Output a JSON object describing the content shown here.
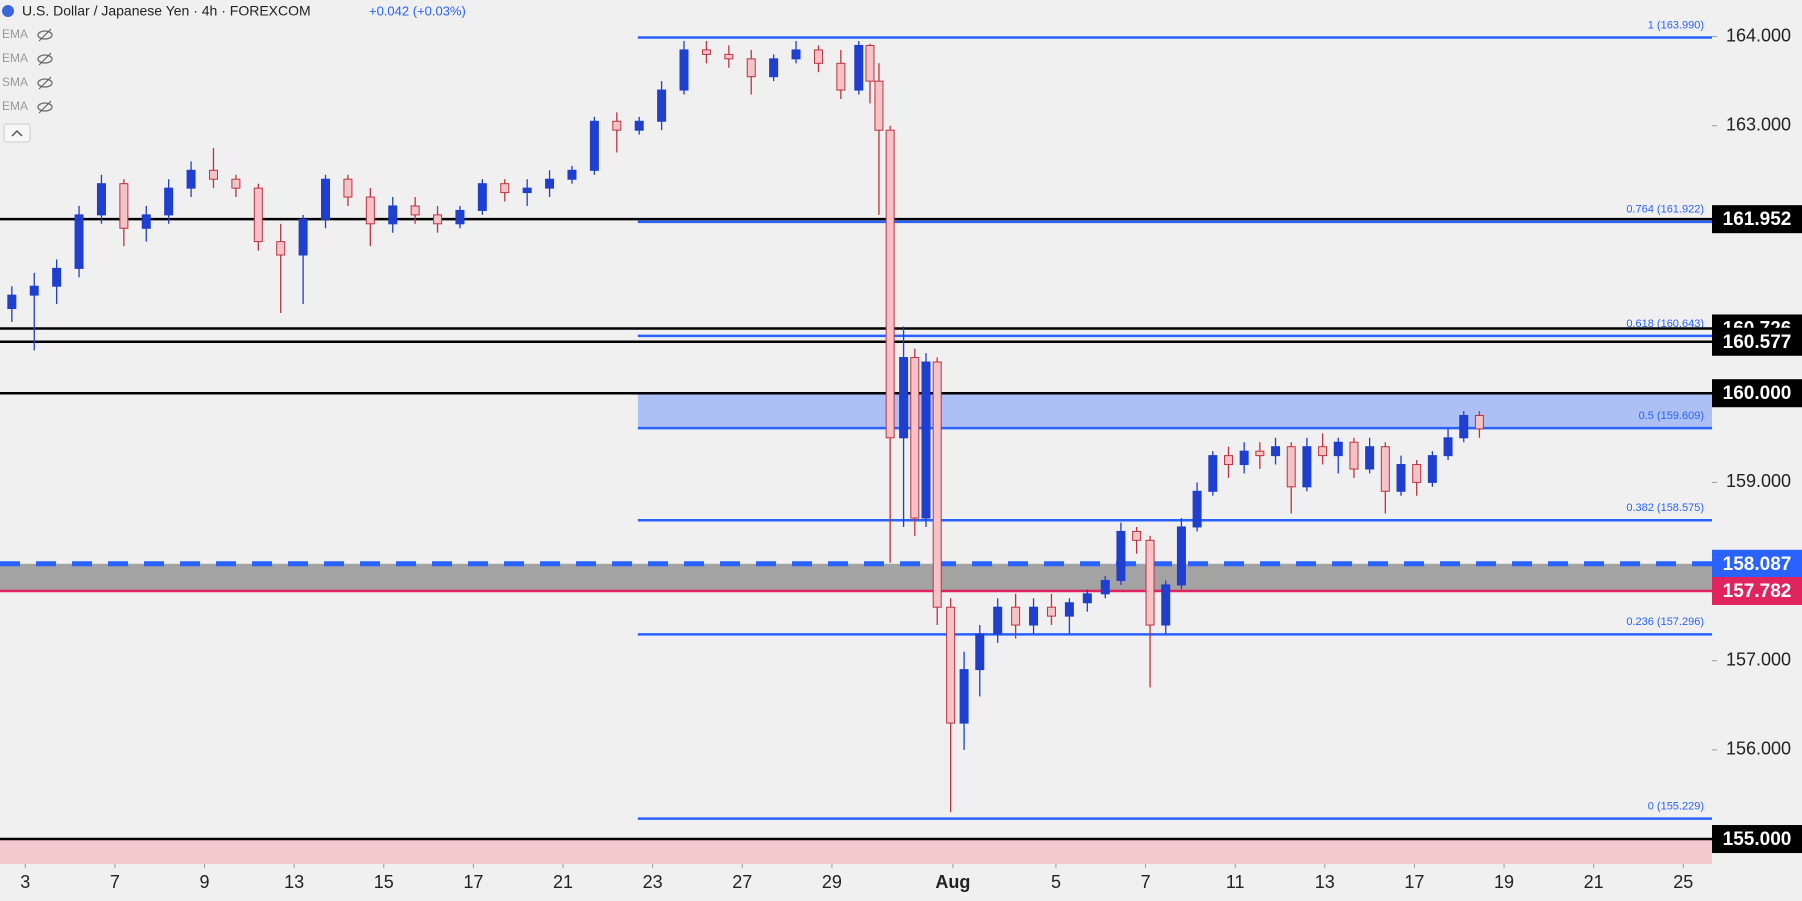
{
  "header": {
    "symbol": "U.S. Dollar / Japanese Yen · 4h · FOREXCOM",
    "change": "+0.042 (+0.03%)",
    "indicators": [
      "EMA",
      "EMA",
      "SMA",
      "EMA"
    ]
  },
  "chart_data": {
    "type": "candlestick",
    "xlim": [
      -0.564,
      37.64
    ],
    "ylim": [
      154.72,
      164.41
    ],
    "xticks": [
      {
        "value": 0,
        "label": "3"
      },
      {
        "value": 2,
        "label": "7"
      },
      {
        "value": 4,
        "label": "9"
      },
      {
        "value": 6,
        "label": "13"
      },
      {
        "value": 8,
        "label": "15"
      },
      {
        "value": 10,
        "label": "17"
      },
      {
        "value": 12,
        "label": "21"
      },
      {
        "value": 14,
        "label": "23"
      },
      {
        "value": 16,
        "label": "27"
      },
      {
        "value": 18,
        "label": "29"
      },
      {
        "value": 20.7,
        "label": "Aug"
      },
      {
        "value": 23,
        "label": "5"
      },
      {
        "value": 25,
        "label": "7"
      },
      {
        "value": 27,
        "label": "11"
      },
      {
        "value": 29,
        "label": "13"
      },
      {
        "value": 31,
        "label": "17"
      },
      {
        "value": 33,
        "label": "19"
      },
      {
        "value": 35,
        "label": "21"
      },
      {
        "value": 37,
        "label": "25"
      }
    ],
    "yticks": [
      {
        "value": 164,
        "label": "164.000"
      },
      {
        "value": 163,
        "label": "163.000"
      },
      {
        "value": 159,
        "label": "159.000"
      },
      {
        "value": 157,
        "label": "157.000"
      },
      {
        "value": 156,
        "label": "156.000"
      }
    ],
    "up_color": "#1f3fcf",
    "down_color": "#c0323f",
    "candles": [
      {
        "x": -0.3,
        "o": 160.95,
        "h": 161.2,
        "l": 160.8,
        "c": 161.1
      },
      {
        "x": 0.2,
        "o": 161.1,
        "h": 161.35,
        "l": 160.48,
        "c": 161.2
      },
      {
        "x": 0.7,
        "o": 161.2,
        "h": 161.5,
        "l": 161.0,
        "c": 161.4
      },
      {
        "x": 1.2,
        "o": 161.4,
        "h": 162.1,
        "l": 161.3,
        "c": 162.0
      },
      {
        "x": 1.7,
        "o": 162.0,
        "h": 162.45,
        "l": 161.9,
        "c": 162.35
      },
      {
        "x": 2.2,
        "o": 162.35,
        "h": 162.4,
        "l": 161.65,
        "c": 161.85
      },
      {
        "x": 2.7,
        "o": 161.85,
        "h": 162.1,
        "l": 161.7,
        "c": 162.0
      },
      {
        "x": 3.2,
        "o": 162.0,
        "h": 162.4,
        "l": 161.9,
        "c": 162.3
      },
      {
        "x": 3.7,
        "o": 162.3,
        "h": 162.6,
        "l": 162.2,
        "c": 162.5
      },
      {
        "x": 4.2,
        "o": 162.5,
        "h": 162.75,
        "l": 162.3,
        "c": 162.4
      },
      {
        "x": 4.7,
        "o": 162.4,
        "h": 162.45,
        "l": 162.2,
        "c": 162.3
      },
      {
        "x": 5.2,
        "o": 162.3,
        "h": 162.35,
        "l": 161.6,
        "c": 161.7
      },
      {
        "x": 5.7,
        "o": 161.7,
        "h": 161.9,
        "l": 160.9,
        "c": 161.55
      },
      {
        "x": 6.2,
        "o": 161.55,
        "h": 162.0,
        "l": 161.0,
        "c": 161.95
      },
      {
        "x": 6.7,
        "o": 161.95,
        "h": 162.45,
        "l": 161.85,
        "c": 162.4
      },
      {
        "x": 7.2,
        "o": 162.4,
        "h": 162.45,
        "l": 162.1,
        "c": 162.2
      },
      {
        "x": 7.7,
        "o": 162.2,
        "h": 162.3,
        "l": 161.65,
        "c": 161.9
      },
      {
        "x": 8.2,
        "o": 161.9,
        "h": 162.2,
        "l": 161.8,
        "c": 162.1
      },
      {
        "x": 8.7,
        "o": 162.1,
        "h": 162.2,
        "l": 161.9,
        "c": 162.0
      },
      {
        "x": 9.2,
        "o": 162.0,
        "h": 162.1,
        "l": 161.8,
        "c": 161.9
      },
      {
        "x": 9.7,
        "o": 161.9,
        "h": 162.1,
        "l": 161.85,
        "c": 162.05
      },
      {
        "x": 10.2,
        "o": 162.05,
        "h": 162.4,
        "l": 162.0,
        "c": 162.35
      },
      {
        "x": 10.7,
        "o": 162.35,
        "h": 162.4,
        "l": 162.15,
        "c": 162.25
      },
      {
        "x": 11.2,
        "o": 162.25,
        "h": 162.4,
        "l": 162.1,
        "c": 162.3
      },
      {
        "x": 11.7,
        "o": 162.3,
        "h": 162.5,
        "l": 162.2,
        "c": 162.4
      },
      {
        "x": 12.2,
        "o": 162.4,
        "h": 162.55,
        "l": 162.35,
        "c": 162.5
      },
      {
        "x": 12.7,
        "o": 162.5,
        "h": 163.1,
        "l": 162.45,
        "c": 163.05
      },
      {
        "x": 13.2,
        "o": 163.05,
        "h": 163.15,
        "l": 162.7,
        "c": 162.95
      },
      {
        "x": 13.7,
        "o": 162.95,
        "h": 163.1,
        "l": 162.9,
        "c": 163.05
      },
      {
        "x": 14.2,
        "o": 163.05,
        "h": 163.5,
        "l": 162.95,
        "c": 163.4
      },
      {
        "x": 14.7,
        "o": 163.4,
        "h": 163.95,
        "l": 163.35,
        "c": 163.85
      },
      {
        "x": 15.2,
        "o": 163.85,
        "h": 163.95,
        "l": 163.7,
        "c": 163.8
      },
      {
        "x": 15.7,
        "o": 163.8,
        "h": 163.9,
        "l": 163.65,
        "c": 163.75
      },
      {
        "x": 16.2,
        "o": 163.75,
        "h": 163.85,
        "l": 163.35,
        "c": 163.55
      },
      {
        "x": 16.7,
        "o": 163.55,
        "h": 163.8,
        "l": 163.5,
        "c": 163.75
      },
      {
        "x": 17.2,
        "o": 163.75,
        "h": 163.95,
        "l": 163.7,
        "c": 163.85
      },
      {
        "x": 17.7,
        "o": 163.85,
        "h": 163.9,
        "l": 163.6,
        "c": 163.7
      },
      {
        "x": 18.2,
        "o": 163.7,
        "h": 163.85,
        "l": 163.3,
        "c": 163.4
      },
      {
        "x": 18.6,
        "o": 163.4,
        "h": 163.95,
        "l": 163.35,
        "c": 163.9
      },
      {
        "x": 18.85,
        "o": 163.9,
        "h": 163.92,
        "l": 163.25,
        "c": 163.5
      },
      {
        "x": 19.05,
        "o": 163.5,
        "h": 163.7,
        "l": 162.0,
        "c": 162.95
      },
      {
        "x": 19.3,
        "o": 162.95,
        "h": 163.0,
        "l": 158.1,
        "c": 159.5
      },
      {
        "x": 19.6,
        "o": 159.5,
        "h": 160.75,
        "l": 158.5,
        "c": 160.4
      },
      {
        "x": 19.85,
        "o": 160.4,
        "h": 160.5,
        "l": 158.4,
        "c": 158.6
      },
      {
        "x": 20.1,
        "o": 158.6,
        "h": 160.45,
        "l": 158.5,
        "c": 160.35
      },
      {
        "x": 20.35,
        "o": 160.35,
        "h": 160.4,
        "l": 157.4,
        "c": 157.6
      },
      {
        "x": 20.65,
        "o": 157.6,
        "h": 157.7,
        "l": 155.3,
        "c": 156.3
      },
      {
        "x": 20.95,
        "o": 156.3,
        "h": 157.1,
        "l": 156.0,
        "c": 156.9
      },
      {
        "x": 21.3,
        "o": 156.9,
        "h": 157.4,
        "l": 156.6,
        "c": 157.3
      },
      {
        "x": 21.7,
        "o": 157.3,
        "h": 157.7,
        "l": 157.2,
        "c": 157.6
      },
      {
        "x": 22.1,
        "o": 157.6,
        "h": 157.75,
        "l": 157.25,
        "c": 157.4
      },
      {
        "x": 22.5,
        "o": 157.4,
        "h": 157.7,
        "l": 157.3,
        "c": 157.6
      },
      {
        "x": 22.9,
        "o": 157.6,
        "h": 157.75,
        "l": 157.4,
        "c": 157.5
      },
      {
        "x": 23.3,
        "o": 157.5,
        "h": 157.7,
        "l": 157.3,
        "c": 157.65
      },
      {
        "x": 23.7,
        "o": 157.65,
        "h": 157.8,
        "l": 157.55,
        "c": 157.75
      },
      {
        "x": 24.1,
        "o": 157.75,
        "h": 157.95,
        "l": 157.7,
        "c": 157.9
      },
      {
        "x": 24.45,
        "o": 157.9,
        "h": 158.55,
        "l": 157.85,
        "c": 158.45
      },
      {
        "x": 24.8,
        "o": 158.45,
        "h": 158.5,
        "l": 158.2,
        "c": 158.35
      },
      {
        "x": 25.1,
        "o": 158.35,
        "h": 158.4,
        "l": 156.7,
        "c": 157.4
      },
      {
        "x": 25.45,
        "o": 157.4,
        "h": 157.9,
        "l": 157.3,
        "c": 157.85
      },
      {
        "x": 25.8,
        "o": 157.85,
        "h": 158.6,
        "l": 157.8,
        "c": 158.5
      },
      {
        "x": 26.15,
        "o": 158.5,
        "h": 159.0,
        "l": 158.45,
        "c": 158.9
      },
      {
        "x": 26.5,
        "o": 158.9,
        "h": 159.35,
        "l": 158.85,
        "c": 159.3
      },
      {
        "x": 26.85,
        "o": 159.3,
        "h": 159.4,
        "l": 159.05,
        "c": 159.2
      },
      {
        "x": 27.2,
        "o": 159.2,
        "h": 159.45,
        "l": 159.1,
        "c": 159.35
      },
      {
        "x": 27.55,
        "o": 159.35,
        "h": 159.45,
        "l": 159.15,
        "c": 159.3
      },
      {
        "x": 27.9,
        "o": 159.3,
        "h": 159.5,
        "l": 159.2,
        "c": 159.4
      },
      {
        "x": 28.25,
        "o": 159.4,
        "h": 159.45,
        "l": 158.65,
        "c": 158.95
      },
      {
        "x": 28.6,
        "o": 158.95,
        "h": 159.5,
        "l": 158.9,
        "c": 159.4
      },
      {
        "x": 28.95,
        "o": 159.4,
        "h": 159.55,
        "l": 159.2,
        "c": 159.3
      },
      {
        "x": 29.3,
        "o": 159.3,
        "h": 159.5,
        "l": 159.1,
        "c": 159.45
      },
      {
        "x": 29.65,
        "o": 159.45,
        "h": 159.5,
        "l": 159.05,
        "c": 159.15
      },
      {
        "x": 30.0,
        "o": 159.15,
        "h": 159.5,
        "l": 159.1,
        "c": 159.4
      },
      {
        "x": 30.35,
        "o": 159.4,
        "h": 159.45,
        "l": 158.65,
        "c": 158.9
      },
      {
        "x": 30.7,
        "o": 158.9,
        "h": 159.3,
        "l": 158.85,
        "c": 159.2
      },
      {
        "x": 31.05,
        "o": 159.2,
        "h": 159.25,
        "l": 158.85,
        "c": 159.0
      },
      {
        "x": 31.4,
        "o": 159.0,
        "h": 159.35,
        "l": 158.95,
        "c": 159.3
      },
      {
        "x": 31.75,
        "o": 159.3,
        "h": 159.6,
        "l": 159.25,
        "c": 159.5
      },
      {
        "x": 32.1,
        "o": 159.5,
        "h": 159.8,
        "l": 159.45,
        "c": 159.75
      },
      {
        "x": 32.45,
        "o": 159.75,
        "h": 159.8,
        "l": 159.5,
        "c": 159.6
      }
    ],
    "zones": [
      {
        "from": 159.609,
        "to": 160.0,
        "x_start": 13.67,
        "color": "#adc0f5"
      },
      {
        "from": 157.782,
        "to": 158.087,
        "color": "#a3a3a3"
      },
      {
        "to": 155.0,
        "color": "#f3c9ce"
      }
    ],
    "fib": {
      "x_start": 13.67,
      "color": "#2962ff",
      "levels": [
        {
          "value": 163.99,
          "label": "1 (163.990)"
        },
        {
          "value": 161.922,
          "label": "0.764 (161.922)"
        },
        {
          "value": 160.643,
          "label": "0.618 (160.643)"
        },
        {
          "value": 159.609,
          "label": "0.5 (159.609)"
        },
        {
          "value": 158.575,
          "label": "0.382 (158.575)"
        },
        {
          "value": 157.296,
          "label": "0.236 (157.296)"
        },
        {
          "value": 155.229,
          "label": "0 (155.229)"
        }
      ]
    },
    "levels": [
      {
        "value": 161.952,
        "label": "161.952",
        "color": "#000000"
      },
      {
        "value": 160.726,
        "label": "160.726",
        "color": "#000000"
      },
      {
        "value": 160.577,
        "label": "160.577",
        "color": "#000000"
      },
      {
        "value": 160.0,
        "label": "160.000",
        "color": "#000000"
      },
      {
        "value": 158.087,
        "label": "158.087",
        "color": "#2962ff",
        "style": "dashed"
      },
      {
        "value": 157.782,
        "label": "157.782",
        "color": "#e0245e"
      },
      {
        "value": 155.0,
        "label": "155.000",
        "color": "#000000"
      }
    ]
  }
}
